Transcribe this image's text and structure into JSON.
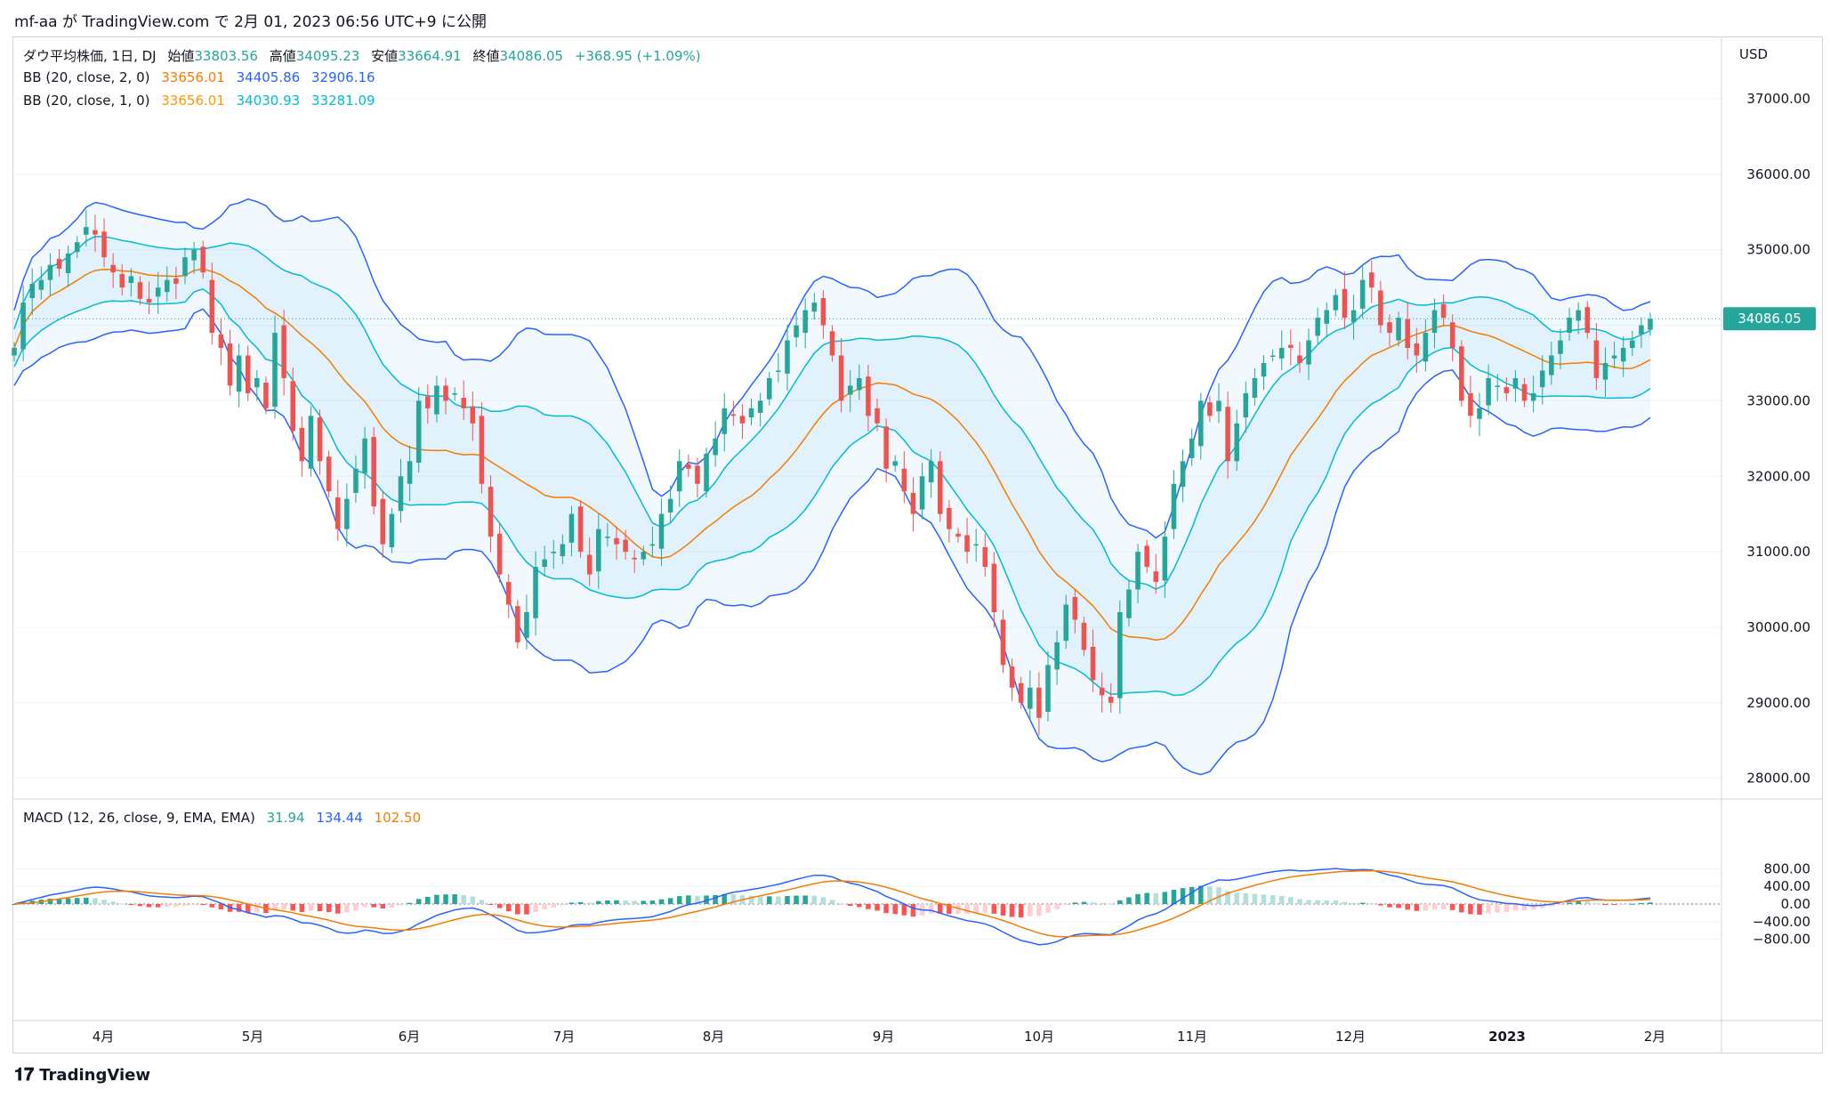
{
  "header": {
    "publisher": "mf-aa",
    "text_ga": "が",
    "site": "TradingView.com",
    "text_de": "で",
    "date": "2月 01, 2023 06:56 UTC+9",
    "text_ni": "に公開"
  },
  "legend": {
    "main": {
      "label": "ダウ平均株価, 1日, DJ",
      "open_label": "始値",
      "open": "33803.56",
      "high_label": "高値",
      "high": "34095.23",
      "low_label": "安値",
      "low": "33664.91",
      "close_label": "終値",
      "close": "34086.05",
      "change": "+368.95 (+1.09%)"
    },
    "bb2": {
      "label": "BB (20, close, 2, 0)",
      "basis": "33656.01",
      "upper": "34405.86",
      "lower": "32906.16"
    },
    "bb1": {
      "label": "BB (20, close, 1, 0)",
      "basis": "33656.01",
      "upper": "34030.93",
      "lower": "33281.09"
    },
    "macd": {
      "label": "MACD (12, 26, close, 9, EMA, EMA)",
      "hist": "31.94",
      "macd": "134.44",
      "signal": "102.50"
    }
  },
  "axis": {
    "currency": "USD",
    "price_ticks": [
      "37000.00",
      "36000.00",
      "35000.00",
      "34000.00",
      "33000.00",
      "32000.00",
      "31000.00",
      "30000.00",
      "29000.00",
      "28000.00"
    ],
    "last_price": "34086.05",
    "macd_ticks": [
      "800.00",
      "400.00",
      "0.00",
      "−400.00",
      "−800.00"
    ],
    "time_labels": [
      "4月",
      "5月",
      "6月",
      "7月",
      "8月",
      "9月",
      "10月",
      "11月",
      "12月",
      "2023",
      "2月"
    ]
  },
  "footer": {
    "brand": "TradingView"
  },
  "colors": {
    "up": "#26a69a",
    "down": "#ef5350",
    "bb2_band": "#2962ff",
    "bb1_band": "#00bcd4",
    "basis": "#f57c00",
    "macd_line": "#2962ff",
    "signal_line": "#f57c00"
  },
  "chart_data": {
    "type": "candlestick",
    "title": "ダウ平均株価, 1日, DJ",
    "ylim": [
      28000,
      37500
    ],
    "month_labels": [
      "4月",
      "5月",
      "6月",
      "7月",
      "8月",
      "9月",
      "10月",
      "11月",
      "12月",
      "2023",
      "2月"
    ],
    "closes": [
      33700,
      34300,
      34550,
      34600,
      34800,
      34750,
      34950,
      35100,
      35300,
      35200,
      34900,
      34700,
      34500,
      34650,
      34350,
      34300,
      34500,
      34600,
      34550,
      34900,
      35000,
      34700,
      33900,
      33700,
      33200,
      33600,
      33100,
      33300,
      32900,
      33900,
      33300,
      32600,
      32200,
      32800,
      32200,
      31800,
      31300,
      31700,
      32100,
      32500,
      31600,
      31100,
      31500,
      32000,
      32200,
      33000,
      32900,
      33200,
      33000,
      33100,
      32900,
      32700,
      31900,
      31200,
      30700,
      30300,
      29800,
      30200,
      30800,
      30900,
      31000,
      31100,
      31500,
      31000,
      30700,
      31300,
      31200,
      31100,
      31000,
      30900,
      31000,
      31100,
      31500,
      31700,
      32200,
      32100,
      31900,
      32300,
      32500,
      32900,
      32800,
      32700,
      32900,
      33000,
      33300,
      33400,
      33800,
      34000,
      34200,
      34300,
      34000,
      33600,
      33000,
      33200,
      33300,
      32800,
      32700,
      32100,
      32200,
      31800,
      31500,
      32000,
      32200,
      31500,
      31300,
      31200,
      31000,
      31100,
      30800,
      30200,
      29500,
      29200,
      29000,
      29200,
      28800,
      29500,
      29800,
      30300,
      30100,
      29700,
      29300,
      29100,
      29000,
      30200,
      30500,
      31000,
      30800,
      30600,
      31200,
      31900,
      32200,
      32500,
      33000,
      32800,
      33000,
      32200,
      32700,
      33100,
      33300,
      33500,
      33600,
      33700,
      33700,
      33500,
      33800,
      34100,
      34200,
      34400,
      34100,
      34200,
      34600,
      34500,
      34000,
      33900,
      34100,
      33700,
      33600,
      33900,
      34200,
      34100,
      33700,
      33000,
      32800,
      32900,
      33300,
      33200,
      33100,
      33300,
      33000,
      33100,
      33400,
      33600,
      33800,
      34100,
      34200,
      33900,
      33300,
      33500,
      33600,
      33700,
      33800,
      34000,
      34086
    ]
  }
}
